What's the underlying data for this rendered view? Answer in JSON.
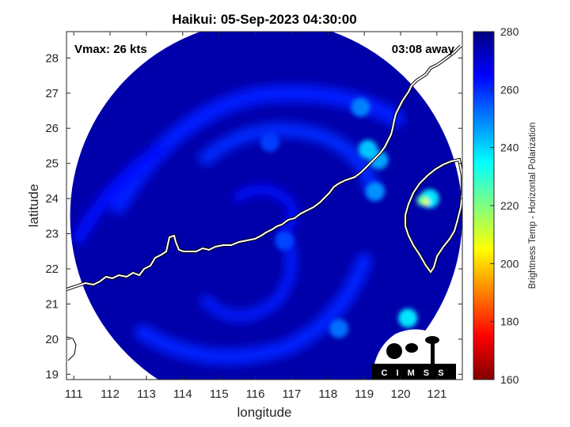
{
  "chart_data": {
    "type": "heatmap",
    "title": "Haikui: 05-Sep-2023 04:30:00",
    "xlabel": "longitude",
    "ylabel": "latitude",
    "xlim": [
      110.8,
      121.7
    ],
    "ylim": [
      18.85,
      28.75
    ],
    "xticks": [
      111,
      112,
      113,
      114,
      115,
      116,
      117,
      118,
      119,
      120,
      121
    ],
    "yticks": [
      19,
      20,
      21,
      22,
      23,
      24,
      25,
      26,
      27,
      28
    ],
    "annotations": {
      "top_left": "Vmax: 26 kts",
      "top_right": "03:08 away"
    },
    "colorbar": {
      "label": "Brightness Temp - Horizontal Polarization",
      "range": [
        160,
        280
      ],
      "ticks": [
        160,
        180,
        200,
        220,
        240,
        260,
        280
      ],
      "colormap": "jet",
      "colors": [
        "#800000",
        "#ff0000",
        "#ff8000",
        "#ffff00",
        "#80ff80",
        "#00ffff",
        "#0080ff",
        "#0000ff",
        "#000080"
      ]
    },
    "swath": {
      "center": [
        116.3,
        23.5
      ],
      "radius_deg": 5.4,
      "background_temp": 275
    },
    "features": [
      {
        "lon": 120.7,
        "lat": 23.9,
        "temp": 205
      },
      {
        "lon": 120.6,
        "lat": 23.95,
        "temp": 225
      },
      {
        "lon": 120.8,
        "lat": 24.0,
        "temp": 238
      },
      {
        "lon": 119.1,
        "lat": 25.4,
        "temp": 242
      },
      {
        "lon": 119.4,
        "lat": 25.1,
        "temp": 246
      },
      {
        "lon": 119.3,
        "lat": 24.2,
        "temp": 248
      },
      {
        "lon": 120.2,
        "lat": 20.6,
        "temp": 238
      },
      {
        "lon": 118.9,
        "lat": 26.6,
        "temp": 250
      },
      {
        "lon": 118.3,
        "lat": 20.3,
        "temp": 252
      },
      {
        "lon": 116.8,
        "lat": 22.8,
        "temp": 257
      },
      {
        "lon": 116.4,
        "lat": 25.6,
        "temp": 258
      }
    ],
    "coastline_color": "#ffffff",
    "logo": "CIMSS"
  }
}
